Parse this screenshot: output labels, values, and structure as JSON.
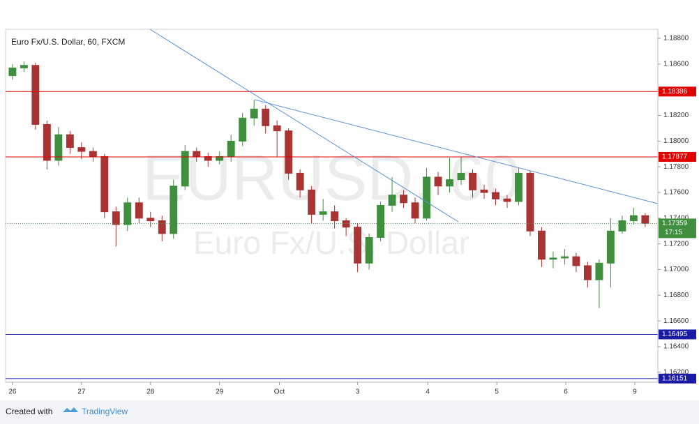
{
  "chart_data": {
    "type": "candlestick",
    "title": "Euro Fx/U.S. Dollar, 60, FXCM",
    "watermark": "EURUSD, 60",
    "watermark_subtitle": "Euro Fx/U.S. Dollar",
    "up_color": "#3f8f3f",
    "down_color": "#a83434",
    "grid": false,
    "xlim": [
      -0.6,
      56.1
    ],
    "xticks": [
      {
        "value": 0,
        "label": "26"
      },
      {
        "value": 6,
        "label": "27"
      },
      {
        "value": 12,
        "label": "28"
      },
      {
        "value": 18,
        "label": "29"
      },
      {
        "value": 23.2,
        "label": "Oct"
      },
      {
        "value": 30,
        "label": "3"
      },
      {
        "value": 36.1,
        "label": "4"
      },
      {
        "value": 42.1,
        "label": "5"
      },
      {
        "value": 48.1,
        "label": "6"
      },
      {
        "value": 54.1,
        "label": "9"
      }
    ],
    "ylim": [
      1.16123,
      1.18871
    ],
    "yticks": [
      {
        "value": 1.188,
        "label": "1.18800"
      },
      {
        "value": 1.186,
        "label": "1.18600"
      },
      {
        "value": 1.184,
        "label": "1.18400"
      },
      {
        "value": 1.182,
        "label": "1.18200"
      },
      {
        "value": 1.18,
        "label": "1.18000"
      },
      {
        "value": 1.178,
        "label": "1.17800"
      },
      {
        "value": 1.176,
        "label": "1.17600"
      },
      {
        "value": 1.174,
        "label": "1.17400"
      },
      {
        "value": 1.172,
        "label": "1.17200"
      },
      {
        "value": 1.17,
        "label": "1.17000"
      },
      {
        "value": 1.168,
        "label": "1.16800"
      },
      {
        "value": 1.166,
        "label": "1.16600"
      },
      {
        "value": 1.164,
        "label": "1.16400"
      },
      {
        "value": 1.162,
        "label": "1.16200"
      }
    ],
    "open": [
      1.1851,
      1.1857,
      1.1859,
      1.1813,
      1.1785,
      1.1805,
      1.1795,
      1.1792,
      1.1788,
      1.1745,
      1.1735,
      1.1752,
      1.174,
      1.1738,
      1.1728,
      1.1765,
      1.1792,
      1.1788,
      1.1785,
      1.1788,
      1.18,
      1.1818,
      1.1825,
      1.1812,
      1.1808,
      1.1775,
      1.1762,
      1.1743,
      1.1745,
      1.1738,
      1.1733,
      1.1705,
      1.1725,
      1.175,
      1.1758,
      1.1752,
      1.174,
      1.1772,
      1.1765,
      1.177,
      1.1775,
      1.1762,
      1.176,
      1.1755,
      1.1753,
      1.1775,
      1.173,
      1.1708,
      1.1709,
      1.171,
      1.1703,
      1.1692,
      1.1705,
      1.173,
      1.1738,
      1.1742
    ],
    "high": [
      1.186,
      1.1862,
      1.1861,
      1.1816,
      1.1811,
      1.1808,
      1.1799,
      1.1795,
      1.179,
      1.1749,
      1.1756,
      1.1756,
      1.1745,
      1.1742,
      1.177,
      1.1797,
      1.1795,
      1.1791,
      1.1792,
      1.1805,
      1.1822,
      1.1832,
      1.1828,
      1.1816,
      1.181,
      1.1778,
      1.1765,
      1.1755,
      1.175,
      1.174,
      1.1736,
      1.1728,
      1.1753,
      1.1772,
      1.1762,
      1.1756,
      1.1779,
      1.1776,
      1.1787,
      1.1788,
      1.1778,
      1.1766,
      1.1763,
      1.1758,
      1.1779,
      1.1777,
      1.1733,
      1.1714,
      1.1716,
      1.1713,
      1.1706,
      1.1708,
      1.174,
      1.1742,
      1.1748,
      1.1744
    ],
    "low": [
      1.1848,
      1.1854,
      1.1809,
      1.1778,
      1.1781,
      1.179,
      1.1786,
      1.1784,
      1.174,
      1.1718,
      1.173,
      1.1736,
      1.1733,
      1.1722,
      1.1724,
      1.1762,
      1.1784,
      1.178,
      1.1782,
      1.1784,
      1.1796,
      1.1812,
      1.1806,
      1.1788,
      1.177,
      1.1756,
      1.1736,
      1.1738,
      1.1732,
      1.1726,
      1.1698,
      1.17,
      1.1722,
      1.1745,
      1.1748,
      1.1736,
      1.1738,
      1.1758,
      1.176,
      1.1766,
      1.1756,
      1.1755,
      1.175,
      1.1748,
      1.175,
      1.1726,
      1.1702,
      1.1701,
      1.1704,
      1.1698,
      1.1686,
      1.167,
      1.1686,
      1.1728,
      1.1735,
      1.1733
    ],
    "close": [
      1.1857,
      1.1859,
      1.1813,
      1.1785,
      1.1805,
      1.1795,
      1.1792,
      1.1788,
      1.1745,
      1.1735,
      1.1752,
      1.174,
      1.1738,
      1.1728,
      1.1765,
      1.1792,
      1.1788,
      1.1785,
      1.1788,
      1.18,
      1.1818,
      1.1825,
      1.1812,
      1.1808,
      1.1775,
      1.1762,
      1.1743,
      1.1745,
      1.1738,
      1.1733,
      1.1705,
      1.1725,
      1.175,
      1.1758,
      1.1752,
      1.174,
      1.1772,
      1.1765,
      1.177,
      1.1775,
      1.1762,
      1.176,
      1.1755,
      1.1753,
      1.1775,
      1.173,
      1.1708,
      1.1709,
      1.171,
      1.1703,
      1.1692,
      1.1705,
      1.173,
      1.1738,
      1.1742,
      1.1736
    ],
    "levels": [
      {
        "value": 1.18386,
        "color": "#e00000"
      },
      {
        "value": 1.17877,
        "color": "#e00000"
      },
      {
        "value": 1.16495,
        "color": "#1a1aa6"
      },
      {
        "value": 1.16151,
        "color": "#1a1aa6"
      }
    ],
    "last_price": 1.17359,
    "last_price_color": "#3f8f3f",
    "countdown": "17:15",
    "footer_text": "Created with",
    "footer_brand": "TradingView"
  }
}
